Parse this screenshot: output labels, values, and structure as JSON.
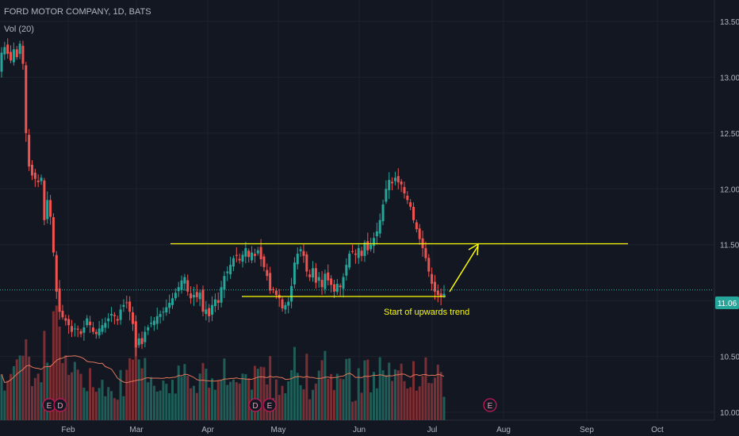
{
  "header": {
    "symbol": "FORD MOTOR COMPANY, 1D, BATS",
    "indicator": "Vol (20)"
  },
  "colors": {
    "background": "#131722",
    "grid": "#1e222d",
    "up": "#26a69a",
    "down": "#ef5350",
    "vol_up": "#1f5e58",
    "vol_down": "#7a2f35",
    "vol_ma": "#e0765a",
    "annotation": "#ffff00",
    "price_line": "#2bb3a6",
    "price_badge": "#26a69a",
    "event_circle": "#c2185b"
  },
  "chart_data": {
    "type": "candlestick",
    "x_labels": [
      "Feb",
      "Mar",
      "Apr",
      "May",
      "Jun",
      "Jul",
      "Aug",
      "Sep",
      "Oct"
    ],
    "ylim": [
      9.97,
      13.6
    ],
    "y_ticks": [
      "13.50",
      "13.00",
      "12.50",
      "12.00",
      "11.50",
      "11.00",
      "10.50",
      "10.00"
    ],
    "last_price": "11.06",
    "annotation_text": "Start of upwards trend",
    "earnings_markers": [
      "E",
      "D",
      "D",
      "E",
      "E"
    ],
    "closes": [
      13.22,
      13.27,
      13.21,
      13.15,
      13.25,
      13.18,
      13.3,
      13.12,
      12.5,
      12.2,
      12.12,
      12.09,
      12.06,
      12.1,
      11.72,
      11.9,
      11.75,
      11.43,
      11.08,
      10.9,
      10.85,
      10.82,
      10.78,
      10.72,
      10.75,
      10.74,
      10.7,
      10.76,
      10.84,
      10.78,
      10.72,
      10.7,
      10.75,
      10.78,
      10.8,
      10.84,
      10.88,
      10.86,
      10.82,
      10.92,
      10.96,
      10.98,
      10.9,
      10.79,
      10.58,
      10.66,
      10.61,
      10.72,
      10.76,
      10.8,
      10.82,
      10.86,
      10.88,
      10.9,
      10.94,
      10.98,
      11.02,
      11.07,
      11.12,
      11.18,
      11.21,
      11.08,
      11.02,
      11.05,
      11.03,
      11.07,
      10.9,
      10.92,
      10.86,
      10.96,
      11.01,
      10.98,
      11.12,
      11.22,
      11.26,
      11.32,
      11.38,
      11.4,
      11.36,
      11.41,
      11.47,
      11.39,
      11.43,
      11.4,
      11.45,
      11.37,
      11.3,
      11.22,
      11.09,
      11.1,
      11.05,
      11.02,
      10.93,
      10.96,
      10.99,
      11.13,
      11.34,
      11.42,
      11.46,
      11.4,
      11.26,
      11.21,
      11.29,
      11.16,
      11.21,
      11.12,
      11.24,
      11.18,
      11.14,
      11.08,
      11.15,
      11.12,
      11.21,
      11.32,
      11.42,
      11.44,
      11.41,
      11.47,
      11.4,
      11.52,
      11.45,
      11.5,
      11.56,
      11.62,
      11.72,
      11.86,
      12.0,
      12.08,
      12.05,
      12.1,
      12.06,
      12.04,
      11.96,
      11.9,
      11.84,
      11.72,
      11.64,
      11.55,
      11.47,
      11.38,
      11.26,
      11.15,
      11.08,
      11.05,
      11.03,
      11.06
    ]
  }
}
